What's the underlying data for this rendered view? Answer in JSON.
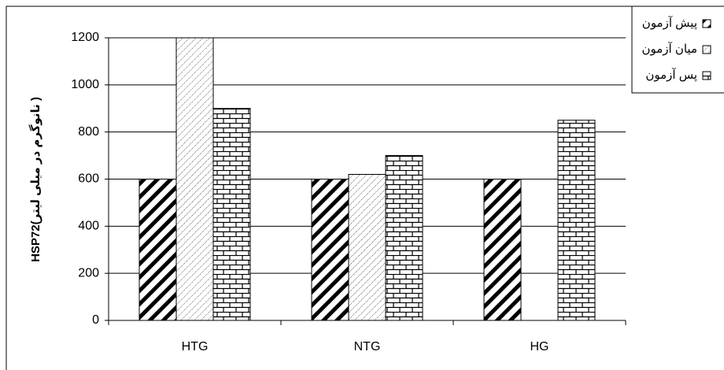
{
  "chart_data": {
    "type": "bar",
    "y_label": "HSP72(نانوگرم در میلی لیتر )",
    "categories": [
      "HTG",
      "NTG",
      "HG"
    ],
    "series": [
      {
        "name": "پیش آزمون",
        "color": "#000000",
        "pattern": "stripes",
        "values": [
          600,
          600,
          600
        ]
      },
      {
        "name": "میان آزمون",
        "color": "#000000",
        "pattern": "dots",
        "values": [
          1200,
          620,
          null
        ]
      },
      {
        "name": "پس آزمون",
        "color": "#000000",
        "pattern": "brick",
        "values": [
          900,
          700,
          850
        ]
      }
    ],
    "ylim": [
      0,
      1200
    ],
    "yticks": [
      0,
      200,
      400,
      600,
      800,
      1000,
      1200
    ],
    "grid": true,
    "legend": "top-right"
  }
}
